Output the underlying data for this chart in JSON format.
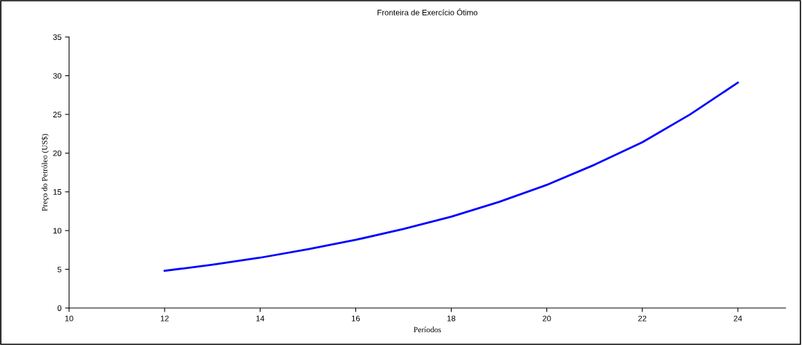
{
  "chart_data": {
    "type": "line",
    "title": "Fronteira de Exercício Ótimo",
    "xlabel": "Períodos",
    "ylabel": "Preço do Petróleo (US$)",
    "x": [
      12,
      13,
      14,
      15,
      16,
      17,
      18,
      19,
      20,
      21,
      22,
      23,
      24
    ],
    "series": [
      {
        "color": "#0000ff",
        "values": [
          4.8,
          5.6,
          6.5,
          7.6,
          8.8,
          10.2,
          11.8,
          13.7,
          15.9,
          18.5,
          21.4,
          25.0,
          29.1
        ]
      }
    ],
    "xlim": [
      10,
      25
    ],
    "xticks": [
      10,
      12,
      14,
      16,
      18,
      20,
      22,
      24
    ],
    "ylim": [
      0,
      35
    ],
    "yticks": [
      0,
      5,
      10,
      15,
      20,
      25,
      30,
      35
    ],
    "grid": false,
    "marker": "none",
    "line_style": "solid"
  }
}
